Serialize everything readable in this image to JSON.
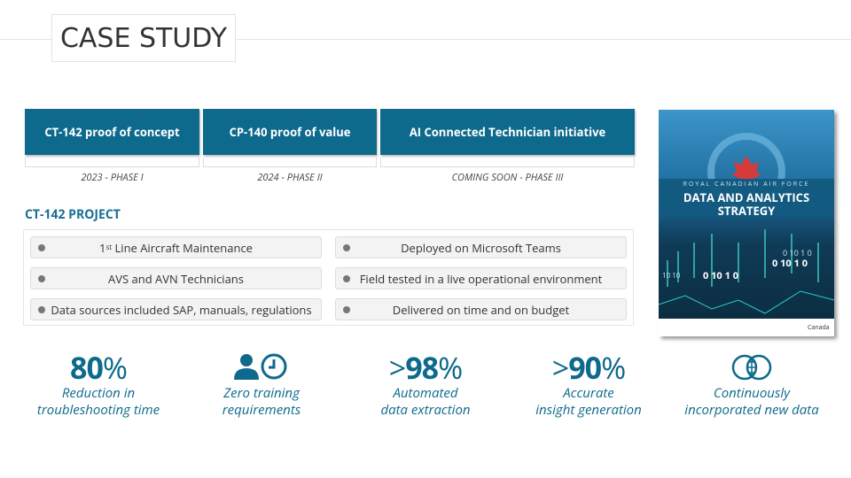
{
  "header": {
    "title": "CASE STUDY"
  },
  "phases": [
    {
      "label": "CT-142 proof of concept",
      "caption": "2023 - PHASE I"
    },
    {
      "label": "CP-140 proof of value",
      "caption": "2024 - PHASE II"
    },
    {
      "label": "AI Connected Technician initiative",
      "caption": "COMING SOON - PHASE III"
    }
  ],
  "project": {
    "heading": "CT-142 PROJECT",
    "bullets": [
      {
        "number": "1",
        "sup": "st",
        "text": "Line Aircraft Maintenance"
      },
      {
        "text": "Deployed on Microsoft Teams"
      },
      {
        "text": "AVS and AVN Technicians"
      },
      {
        "text": "Field tested in a live operational environment"
      },
      {
        "text": "Data sources included SAP, manuals, regulations"
      },
      {
        "text": "Delivered on time and on budget"
      }
    ]
  },
  "poster": {
    "org": "ROYAL CANADIAN AIR FORCE",
    "title_line1": "DATA AND ANALYTICS",
    "title_line2": "STRATEGY",
    "binary": [
      "0 10 1 0",
      "0 10 1 0",
      "0 10 1 0",
      "10 10"
    ],
    "footer": "Canada"
  },
  "stats": [
    {
      "value": "80",
      "unit": "%",
      "caption_line1": "Reduction in",
      "caption_line2": "troubleshooting time"
    },
    {
      "caption_line1": "Zero training",
      "caption_line2": "requirements"
    },
    {
      "prefix": ">",
      "value": "98",
      "unit": "%",
      "caption_line1": "Automated",
      "caption_line2": "data extraction"
    },
    {
      "prefix": ">",
      "value": "90",
      "unit": "%",
      "caption_line1": "Accurate",
      "caption_line2": "insight generation"
    },
    {
      "caption_line1": "Continuously",
      "caption_line2": "incorporated new data"
    }
  ]
}
